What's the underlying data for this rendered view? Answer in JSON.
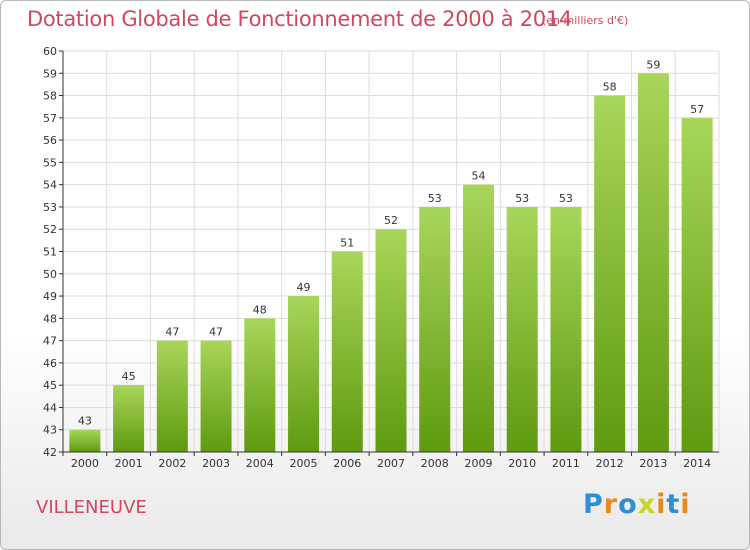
{
  "header": {
    "title": "Dotation Globale de Fonctionnement de 2000 à 2014",
    "subtitle": "(en milliers d'€)"
  },
  "footer": {
    "commune": "VILLENEUVE",
    "logo_text": "Proxiti"
  },
  "colors": {
    "title": "#d0485e",
    "bar_light": "#a8d65a",
    "bar_dark": "#5f9a10",
    "grid": "#dddddd",
    "axis": "#333333",
    "logo_letters": [
      "#2e8fd4",
      "#e58a1f",
      "#2e8fd4",
      "#c8d62a",
      "#e58a1f",
      "#2e8fd4",
      "#e58a1f"
    ]
  },
  "chart_data": {
    "type": "bar",
    "title": "Dotation Globale de Fonctionnement de 2000 à 2014",
    "subtitle": "(en milliers d'€)",
    "xlabel": "",
    "ylabel": "",
    "categories": [
      "2000",
      "2001",
      "2002",
      "2003",
      "2004",
      "2005",
      "2006",
      "2007",
      "2008",
      "2009",
      "2010",
      "2011",
      "2012",
      "2013",
      "2014"
    ],
    "values": [
      43,
      45,
      47,
      47,
      48,
      49,
      51,
      52,
      53,
      54,
      53,
      53,
      58,
      59,
      57
    ],
    "ylim": [
      42,
      60
    ],
    "yticks": [
      42,
      43,
      44,
      45,
      46,
      47,
      48,
      49,
      50,
      51,
      52,
      53,
      54,
      55,
      56,
      57,
      58,
      59,
      60
    ],
    "grid": true,
    "data_labels": true
  }
}
